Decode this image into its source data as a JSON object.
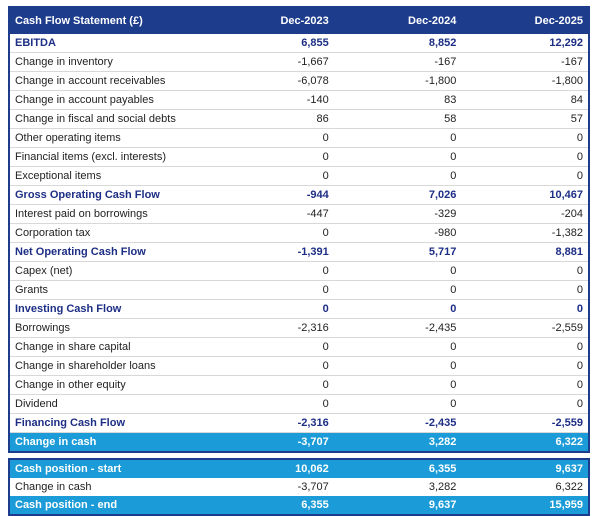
{
  "colors": {
    "header_bg": "#1D3C8C",
    "subtotal_text": "#1D2E85",
    "highlight_bg": "#1B9BD7",
    "row_separator": "#D8D8D8"
  },
  "chart_data": {
    "type": "table",
    "title": "Cash Flow Statement (£)",
    "columns": [
      "Dec-2023",
      "Dec-2024",
      "Dec-2025"
    ],
    "main_rows": [
      {
        "label": "EBITDA",
        "style": "subtotal",
        "values": [
          "6,855",
          "8,852",
          "12,292"
        ]
      },
      {
        "label": "Change in inventory",
        "style": "normal",
        "values": [
          "-1,667",
          "-167",
          "-167"
        ]
      },
      {
        "label": "Change in account receivables",
        "style": "normal",
        "values": [
          "-6,078",
          "-1,800",
          "-1,800"
        ]
      },
      {
        "label": "Change in account payables",
        "style": "normal",
        "values": [
          "-140",
          "83",
          "84"
        ]
      },
      {
        "label": "Change in fiscal and social debts",
        "style": "normal",
        "values": [
          "86",
          "58",
          "57"
        ]
      },
      {
        "label": "Other operating items",
        "style": "normal",
        "values": [
          "0",
          "0",
          "0"
        ]
      },
      {
        "label": "Financial items (excl. interests)",
        "style": "normal",
        "values": [
          "0",
          "0",
          "0"
        ]
      },
      {
        "label": "Exceptional items",
        "style": "normal",
        "values": [
          "0",
          "0",
          "0"
        ]
      },
      {
        "label": "Gross Operating Cash Flow",
        "style": "subtotal",
        "values": [
          "-944",
          "7,026",
          "10,467"
        ]
      },
      {
        "label": "Interest paid on borrowings",
        "style": "normal",
        "values": [
          "-447",
          "-329",
          "-204"
        ]
      },
      {
        "label": "Corporation tax",
        "style": "normal",
        "values": [
          "0",
          "-980",
          "-1,382"
        ]
      },
      {
        "label": "Net Operating Cash Flow",
        "style": "subtotal",
        "values": [
          "-1,391",
          "5,717",
          "8,881"
        ]
      },
      {
        "label": "Capex (net)",
        "style": "normal",
        "values": [
          "0",
          "0",
          "0"
        ]
      },
      {
        "label": "Grants",
        "style": "normal",
        "values": [
          "0",
          "0",
          "0"
        ]
      },
      {
        "label": "Investing Cash Flow",
        "style": "subtotal",
        "values": [
          "0",
          "0",
          "0"
        ]
      },
      {
        "label": "Borrowings",
        "style": "normal",
        "values": [
          "-2,316",
          "-2,435",
          "-2,559"
        ]
      },
      {
        "label": "Change in share capital",
        "style": "normal",
        "values": [
          "0",
          "0",
          "0"
        ]
      },
      {
        "label": "Change in shareholder loans",
        "style": "normal",
        "values": [
          "0",
          "0",
          "0"
        ]
      },
      {
        "label": "Change in other equity",
        "style": "normal",
        "values": [
          "0",
          "0",
          "0"
        ]
      },
      {
        "label": "Dividend",
        "style": "normal",
        "values": [
          "0",
          "0",
          "0"
        ]
      },
      {
        "label": "Financing Cash Flow",
        "style": "subtotal",
        "values": [
          "-2,316",
          "-2,435",
          "-2,559"
        ]
      },
      {
        "label": "Change in cash",
        "style": "highlight",
        "values": [
          "-3,707",
          "3,282",
          "6,322"
        ]
      }
    ],
    "bottom_rows": [
      {
        "label": "Cash position - start",
        "style": "highlight",
        "values": [
          "10,062",
          "6,355",
          "9,637"
        ]
      },
      {
        "label": "Change in cash",
        "style": "normal",
        "values": [
          "-3,707",
          "3,282",
          "6,322"
        ]
      },
      {
        "label": "Cash position - end",
        "style": "highlight",
        "values": [
          "6,355",
          "9,637",
          "15,959"
        ]
      }
    ]
  }
}
